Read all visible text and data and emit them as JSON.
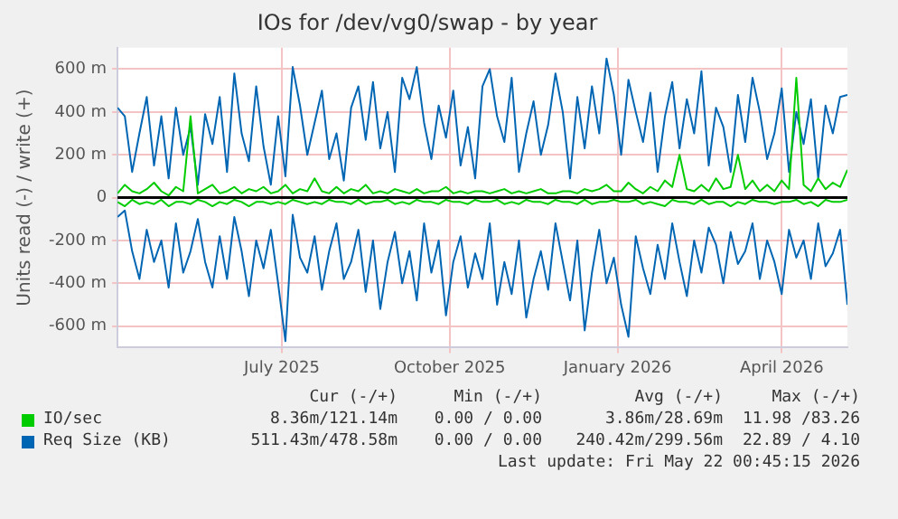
{
  "chart_data": {
    "type": "line",
    "title": "IOs for /dev/vg0/swap - by year",
    "ylabel": "Units read (-) / write (+)",
    "x": [
      "2025-04-17",
      "2025-04-21",
      "2025-04-25",
      "2025-04-29",
      "2025-05-03",
      "2025-05-07",
      "2025-05-11",
      "2025-05-15",
      "2025-05-19",
      "2025-05-23",
      "2025-05-27",
      "2025-05-31",
      "2025-06-04",
      "2025-06-08",
      "2025-06-12",
      "2025-06-16",
      "2025-06-20",
      "2025-06-24",
      "2025-06-28",
      "2025-07-02",
      "2025-07-06",
      "2025-07-10",
      "2025-07-14",
      "2025-07-18",
      "2025-07-22",
      "2025-07-26",
      "2025-07-30",
      "2025-08-03",
      "2025-08-07",
      "2025-08-11",
      "2025-08-15",
      "2025-08-19",
      "2025-08-23",
      "2025-08-27",
      "2025-08-31",
      "2025-09-04",
      "2025-09-08",
      "2025-09-12",
      "2025-09-16",
      "2025-09-20",
      "2025-09-24",
      "2025-09-28",
      "2025-10-02",
      "2025-10-06",
      "2025-10-10",
      "2025-10-14",
      "2025-10-18",
      "2025-10-22",
      "2025-10-26",
      "2025-10-30",
      "2025-11-03",
      "2025-11-07",
      "2025-11-11",
      "2025-11-15",
      "2025-11-19",
      "2025-11-23",
      "2025-11-27",
      "2025-12-01",
      "2025-12-05",
      "2025-12-09",
      "2025-12-13",
      "2025-12-17",
      "2025-12-21",
      "2025-12-25",
      "2025-12-29",
      "2026-01-02",
      "2026-01-06",
      "2026-01-10",
      "2026-01-14",
      "2026-01-18",
      "2026-01-22",
      "2026-01-26",
      "2026-01-30",
      "2026-02-03",
      "2026-02-07",
      "2026-02-11",
      "2026-02-15",
      "2026-02-19",
      "2026-02-23",
      "2026-02-27",
      "2026-03-03",
      "2026-03-07",
      "2026-03-11",
      "2026-03-15",
      "2026-03-19",
      "2026-03-23",
      "2026-03-27",
      "2026-03-31",
      "2026-04-04",
      "2026-04-08",
      "2026-04-12",
      "2026-04-16",
      "2026-04-20",
      "2026-04-24",
      "2026-04-28",
      "2026-05-02",
      "2026-05-06",
      "2026-05-10",
      "2026-05-14",
      "2026-05-18",
      "2026-05-22"
    ],
    "series": [
      {
        "color": "#00cc00",
        "values": [
          -20,
          -40,
          -10,
          -30,
          -20,
          -30,
          -10,
          -40,
          -20,
          -20,
          -30,
          -10,
          -20,
          -40,
          -20,
          -30,
          -10,
          -20,
          -40,
          -20,
          -20,
          -30,
          -20,
          -30,
          -10,
          -20,
          -30,
          -20,
          -30,
          -10,
          -20,
          -20,
          -30,
          -10,
          -30,
          -20,
          -20,
          -10,
          -30,
          -20,
          -30,
          -10,
          -20,
          -20,
          -30,
          -10,
          -20,
          -20,
          -30,
          -10,
          -20,
          -20,
          -10,
          -30,
          -20,
          -30,
          -10,
          -20,
          -20,
          -30,
          -10,
          -20,
          -20,
          -30,
          -10,
          -30,
          -20,
          -20,
          -10,
          -20,
          -20,
          -10,
          -30,
          -20,
          -30,
          -40,
          -10,
          -20,
          -20,
          -30,
          -10,
          -30,
          -20,
          -20,
          -40,
          -20,
          -30,
          -10,
          -20,
          -20,
          -30,
          -20,
          -20,
          -10,
          -30,
          -20,
          -40,
          -10,
          -20,
          -20,
          -10
        ]
      },
      {
        "name": "IO/sec",
        "color": "#00cc00",
        "values": [
          20,
          60,
          30,
          20,
          40,
          70,
          30,
          10,
          50,
          30,
          380,
          20,
          40,
          60,
          20,
          30,
          50,
          20,
          40,
          30,
          50,
          20,
          30,
          60,
          20,
          40,
          30,
          90,
          30,
          20,
          50,
          20,
          40,
          30,
          60,
          20,
          30,
          20,
          40,
          30,
          20,
          40,
          20,
          30,
          30,
          50,
          20,
          30,
          20,
          30,
          30,
          20,
          30,
          40,
          20,
          30,
          20,
          30,
          40,
          20,
          20,
          30,
          30,
          20,
          40,
          30,
          40,
          60,
          30,
          30,
          70,
          40,
          20,
          50,
          30,
          80,
          50,
          200,
          40,
          30,
          60,
          30,
          90,
          40,
          50,
          200,
          40,
          80,
          30,
          60,
          30,
          80,
          40,
          560,
          60,
          30,
          90,
          40,
          70,
          50,
          130
        ]
      },
      {
        "color": "#0066b3",
        "values": [
          -90,
          -60,
          -250,
          -380,
          -150,
          -300,
          -200,
          -420,
          -120,
          -350,
          -250,
          -100,
          -300,
          -420,
          -180,
          -380,
          -90,
          -250,
          -460,
          -200,
          -330,
          -150,
          -400,
          -670,
          -80,
          -280,
          -350,
          -180,
          -430,
          -250,
          -120,
          -380,
          -300,
          -150,
          -440,
          -200,
          -520,
          -300,
          -160,
          -400,
          -250,
          -480,
          -120,
          -350,
          -200,
          -550,
          -300,
          -180,
          -420,
          -260,
          -380,
          -120,
          -500,
          -300,
          -450,
          -200,
          -560,
          -380,
          -250,
          -430,
          -120,
          -300,
          -480,
          -200,
          -620,
          -350,
          -150,
          -400,
          -280,
          -500,
          -650,
          -180,
          -330,
          -450,
          -220,
          -380,
          -120,
          -300,
          -460,
          -200,
          -350,
          -140,
          -220,
          -400,
          -160,
          -310,
          -250,
          -120,
          -380,
          -200,
          -300,
          -450,
          -150,
          -280,
          -200,
          -380,
          -120,
          -320,
          -260,
          -150,
          -500
        ]
      },
      {
        "name": "Req Size (KB)",
        "color": "#0066b3",
        "values": [
          420,
          380,
          120,
          300,
          470,
          150,
          380,
          90,
          420,
          200,
          330,
          60,
          390,
          250,
          470,
          120,
          580,
          300,
          170,
          520,
          240,
          60,
          380,
          100,
          610,
          430,
          200,
          350,
          500,
          180,
          300,
          80,
          420,
          520,
          270,
          540,
          230,
          400,
          120,
          560,
          460,
          610,
          350,
          180,
          430,
          280,
          500,
          150,
          330,
          90,
          520,
          600,
          380,
          260,
          560,
          120,
          300,
          450,
          200,
          340,
          580,
          400,
          90,
          470,
          230,
          520,
          300,
          650,
          480,
          200,
          550,
          400,
          260,
          490,
          120,
          380,
          540,
          230,
          460,
          300,
          590,
          150,
          420,
          330,
          120,
          480,
          260,
          560,
          400,
          180,
          300,
          510,
          120,
          400,
          250,
          460,
          90,
          430,
          300,
          470,
          480
        ]
      }
    ],
    "xlim": [
      "2025-04-17",
      "2026-05-22"
    ],
    "xticks": [
      {
        "value": "2025-07-16",
        "label": "July 2025"
      },
      {
        "value": "2025-10-16",
        "label": "October 2025"
      },
      {
        "value": "2026-01-16",
        "label": "January 2026"
      },
      {
        "value": "2026-04-16",
        "label": "April 2026"
      }
    ],
    "ylim": [
      -700,
      700
    ],
    "yticks": [
      {
        "value": -600,
        "label": "-600 m"
      },
      {
        "value": -400,
        "label": "-400 m"
      },
      {
        "value": -200,
        "label": "-200 m"
      },
      0,
      {
        "value": 200,
        "label": "200 m"
      },
      {
        "value": 400,
        "label": "400 m"
      },
      {
        "value": 600,
        "label": "600 m"
      }
    ],
    "ref_lines": [
      {
        "axis": "y",
        "value": 0,
        "color": "#000000"
      }
    ],
    "grid": true,
    "legend": "bottom",
    "marker": "none",
    "line_style": "solid",
    "annotations": [
      "Cur (-/+)",
      "Min (-/+)",
      "Avg (-/+)",
      "Max (-/+)",
      "8.36m/121.14m",
      "0.00 / 0.00",
      "3.86m/28.69m",
      "11.98 /83.26",
      "511.43m/478.58m",
      "0.00 / 0.00",
      "240.42m/299.56m",
      "22.89 / 4.10",
      "Last update: Fri May 22 00:45:15 2026"
    ]
  }
}
